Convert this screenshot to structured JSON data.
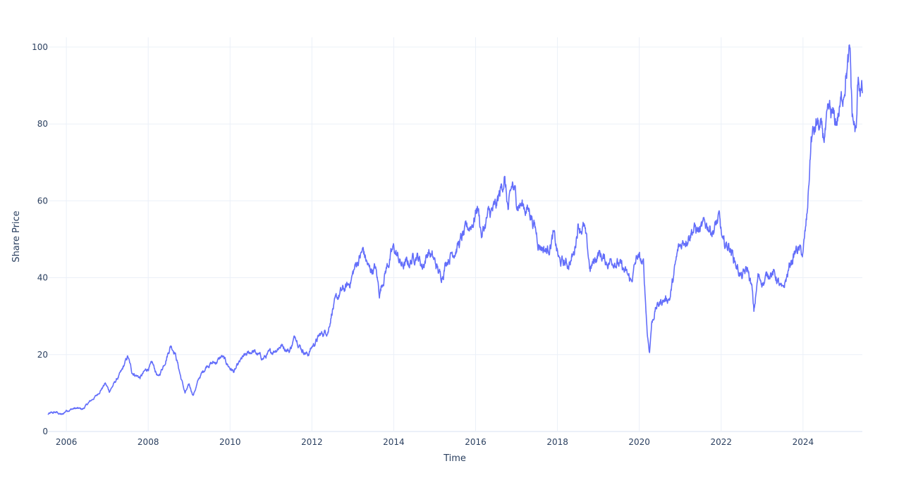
{
  "chart_data": {
    "type": "line",
    "title": "",
    "xlabel": "Time",
    "ylabel": "Share Price",
    "xlim": [
      2005.55,
      2025.45
    ],
    "ylim": [
      0,
      104
    ],
    "x_ticks": [
      2006,
      2008,
      2010,
      2012,
      2014,
      2016,
      2018,
      2020,
      2022,
      2024
    ],
    "x_tick_labels": [
      "2006",
      "2008",
      "2010",
      "2012",
      "2014",
      "2016",
      "2018",
      "2020",
      "2022",
      "2024"
    ],
    "y_ticks": [
      0,
      20,
      40,
      60,
      80,
      100
    ],
    "y_tick_labels": [
      "0",
      "20",
      "40",
      "60",
      "80",
      "100"
    ],
    "grid": true,
    "legend": "none",
    "colors": {
      "line": "#636efa",
      "grid": "#ebf0f8",
      "text": "#2a3f5f"
    },
    "series": [
      {
        "x": [
          2005.55,
          2005.75,
          2005.9,
          2006.0,
          2006.2,
          2006.4,
          2006.55,
          2006.75,
          2006.95,
          2007.05,
          2007.2,
          2007.35,
          2007.5,
          2007.6,
          2007.8,
          2007.95,
          2008.1,
          2008.25,
          2008.4,
          2008.55,
          2008.65,
          2008.8,
          2008.9,
          2009.0,
          2009.1,
          2009.25,
          2009.45,
          2009.65,
          2009.8,
          2010.0,
          2010.1,
          2010.3,
          2010.55,
          2010.8,
          2011.0,
          2011.25,
          2011.45,
          2011.6,
          2011.75,
          2011.9,
          2012.0,
          2012.2,
          2012.4,
          2012.5,
          2012.7,
          2012.9,
          2013.1,
          2013.25,
          2013.4,
          2013.55,
          2013.65,
          2013.8,
          2014.0,
          2014.2,
          2014.4,
          2014.55,
          2014.7,
          2014.85,
          2015.0,
          2015.15,
          2015.3,
          2015.45,
          2015.6,
          2015.8,
          2015.95,
          2016.05,
          2016.15,
          2016.3,
          2016.5,
          2016.6,
          2016.7,
          2016.8,
          2016.9,
          2017.0,
          2017.2,
          2017.35,
          2017.55,
          2017.75,
          2017.9,
          2018.05,
          2018.25,
          2018.4,
          2018.5,
          2018.65,
          2018.8,
          2019.0,
          2019.2,
          2019.4,
          2019.6,
          2019.8,
          2019.95,
          2020.1,
          2020.2,
          2020.25,
          2020.3,
          2020.4,
          2020.55,
          2020.75,
          2020.95,
          2021.1,
          2021.3,
          2021.5,
          2021.65,
          2021.8,
          2021.95,
          2022.05,
          2022.2,
          2022.35,
          2022.5,
          2022.65,
          2022.75,
          2022.8,
          2022.9,
          2023.05,
          2023.2,
          2023.35,
          2023.5,
          2023.7,
          2023.85,
          2024.0,
          2024.1,
          2024.2,
          2024.35,
          2024.5,
          2024.65,
          2024.8,
          2024.95,
          2025.05,
          2025.15,
          2025.2,
          2025.3,
          2025.35,
          2025.45
        ],
        "y": [
          4.5,
          5.0,
          4.3,
          5.5,
          6.0,
          5.8,
          7.5,
          9.5,
          12.5,
          10.5,
          13.0,
          15.5,
          19.5,
          15.5,
          14.0,
          16.0,
          17.5,
          14.0,
          18.0,
          22.5,
          21.0,
          14.0,
          10.0,
          12.0,
          9.5,
          14.0,
          17.5,
          18.0,
          19.5,
          16.5,
          15.5,
          19.0,
          21.0,
          19.0,
          20.5,
          22.5,
          21.0,
          25.0,
          21.5,
          20.0,
          22.0,
          25.0,
          26.5,
          32.0,
          36.0,
          38.0,
          44.0,
          47.0,
          42.0,
          42.5,
          36.0,
          42.0,
          47.5,
          43.0,
          44.0,
          46.5,
          43.0,
          47.0,
          44.0,
          40.0,
          45.0,
          47.0,
          49.0,
          52.5,
          55.0,
          59.0,
          51.0,
          56.0,
          58.0,
          62.0,
          66.5,
          57.0,
          64.0,
          60.0,
          58.5,
          57.0,
          49.0,
          47.0,
          51.0,
          44.0,
          43.5,
          46.0,
          54.0,
          53.0,
          42.0,
          46.5,
          44.0,
          45.0,
          42.0,
          39.0,
          45.5,
          43.0,
          25.0,
          21.0,
          28.0,
          32.0,
          34.0,
          35.0,
          47.0,
          50.0,
          53.0,
          52.0,
          54.0,
          52.5,
          55.0,
          48.0,
          48.5,
          44.0,
          40.0,
          42.0,
          37.0,
          31.0,
          40.0,
          39.0,
          42.0,
          40.0,
          36.0,
          44.0,
          47.5,
          46.0,
          56.0,
          76.0,
          80.0,
          76.0,
          82.0,
          80.0,
          86.0,
          94.0,
          97.0,
          82.0,
          77.0,
          92.0,
          88.0
        ]
      }
    ]
  }
}
